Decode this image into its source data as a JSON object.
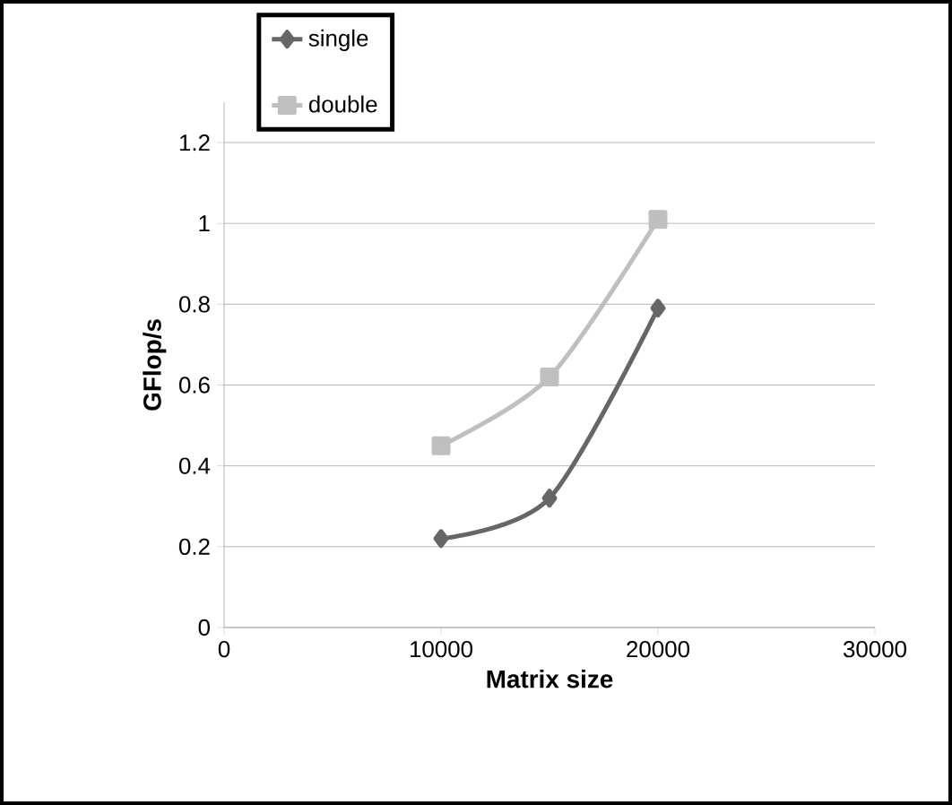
{
  "chart_data": {
    "type": "line",
    "xlabel": "Matrix size",
    "ylabel": "GFlop/s",
    "x": [
      10000,
      15000,
      20000
    ],
    "series": [
      {
        "name": "single",
        "color": "#666666",
        "marker": "diamond",
        "values": [
          0.22,
          0.32,
          0.79
        ]
      },
      {
        "name": "double",
        "color": "#bfbfbf",
        "marker": "square",
        "values": [
          0.45,
          0.62,
          1.01
        ]
      }
    ],
    "xlim": [
      0,
      30000
    ],
    "xticks": [
      0,
      10000,
      20000,
      30000
    ],
    "ylim": [
      0,
      1.3
    ],
    "yticks": [
      0,
      0.2,
      0.4,
      0.6,
      0.8,
      1,
      1.2
    ],
    "grid": "y",
    "legend": "top left",
    "line_style": "solid"
  }
}
